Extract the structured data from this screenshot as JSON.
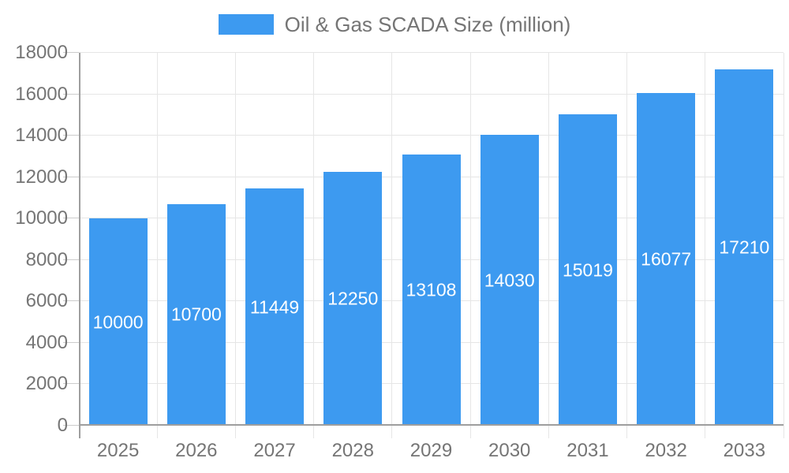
{
  "legend": {
    "label": "Oil & Gas SCADA Size (million)"
  },
  "chart_data": {
    "type": "bar",
    "title": "Oil & Gas SCADA Size (million)",
    "series_name": "Oil & Gas SCADA Size (million)",
    "categories": [
      "2025",
      "2026",
      "2027",
      "2028",
      "2029",
      "2030",
      "2031",
      "2032",
      "2033"
    ],
    "values": [
      10000,
      10700,
      11449,
      12250,
      13108,
      14030,
      15019,
      16077,
      17210
    ],
    "value_labels": [
      "10000",
      "10700",
      "11449",
      "12250",
      "13108",
      "14030",
      "15019",
      "16077",
      "17210"
    ],
    "xlabel": "",
    "ylabel": "",
    "ylim": [
      0,
      18000
    ],
    "ytick_step": 2000,
    "ytick_labels": [
      "0",
      "2000",
      "4000",
      "6000",
      "8000",
      "10000",
      "12000",
      "14000",
      "16000",
      "18000"
    ],
    "grid": true,
    "legend_position": "top",
    "colors": {
      "bar": "#3D9AF0",
      "value_label": "#FFFFFF",
      "axis_text": "#757575",
      "axis_line": "#9E9E9E",
      "gridline": "#E6E6E6",
      "tick": "#CCCCCC"
    }
  }
}
